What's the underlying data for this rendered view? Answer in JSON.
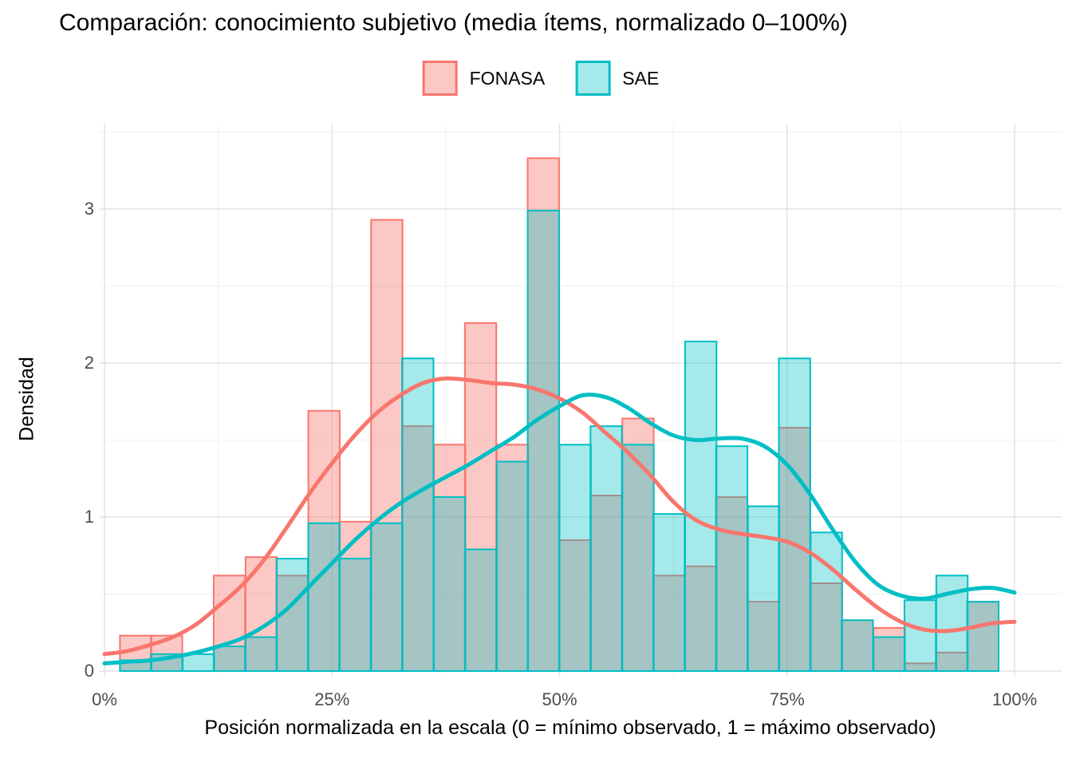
{
  "title": "Comparación: conocimiento subjetivo (media ítems, normalizado 0–100%)",
  "legend": {
    "items": [
      {
        "label": "FONASA",
        "stroke": "#F8766D",
        "fill": "#FCC8C3"
      },
      {
        "label": "SAE",
        "stroke": "#00BFC4",
        "fill": "#A6E9EA"
      }
    ]
  },
  "x_axis": {
    "label": "Posición normalizada en la escala (0 = mínimo observado, 1 = máximo observado)",
    "ticks": [
      {
        "text": "0%",
        "value": 0
      },
      {
        "text": "25%",
        "value": 25
      },
      {
        "text": "50%",
        "value": 50
      },
      {
        "text": "75%",
        "value": 75
      },
      {
        "text": "100%",
        "value": 100
      }
    ],
    "minor_gridlines": [
      12.5,
      37.5,
      62.5,
      87.5
    ]
  },
  "y_axis": {
    "label": "Densidad",
    "ticks": [
      {
        "text": "0",
        "value": 0
      },
      {
        "text": "1",
        "value": 1
      },
      {
        "text": "2",
        "value": 2
      },
      {
        "text": "3",
        "value": 3
      }
    ],
    "minor_gridlines": [
      0.5,
      1.5,
      2.5,
      3.5
    ]
  },
  "chart_data": {
    "type": "histogram+density",
    "title": "Comparación: conocimiento subjetivo (media ítems, normalizado 0–100%)",
    "xlabel": "Posición normalizada en la escala (0 = mínimo observado, 1 = máximo observado)",
    "ylabel": "Densidad",
    "xlim_pct": [
      -1,
      105
    ],
    "ylim": [
      0,
      3.55
    ],
    "grid": true,
    "legend_position": "top",
    "series_names": [
      "FONASA",
      "SAE"
    ],
    "colors": {
      "fonasa_stroke": "#F8766D",
      "fonasa_fill": "rgba(248,118,109,0.4)",
      "sae_stroke": "#00BFC4",
      "sae_fill": "rgba(0,191,196,0.35)",
      "grid_major": "#E4E4E4",
      "grid_minor": "#F1F1F1"
    },
    "histogram": {
      "bin_start_pct": 1.7,
      "bin_width_pct": 3.448,
      "bins": [
        {
          "start": 1.7,
          "fonasa": 0.23,
          "sae": 0.07
        },
        {
          "start": 5.1,
          "fonasa": 0.23,
          "sae": 0.11
        },
        {
          "start": 8.6,
          "fonasa": 0.0,
          "sae": 0.11
        },
        {
          "start": 12.0,
          "fonasa": 0.62,
          "sae": 0.16
        },
        {
          "start": 15.5,
          "fonasa": 0.74,
          "sae": 0.22
        },
        {
          "start": 18.9,
          "fonasa": 0.62,
          "sae": 0.73
        },
        {
          "start": 22.4,
          "fonasa": 1.69,
          "sae": 0.96
        },
        {
          "start": 25.8,
          "fonasa": 0.97,
          "sae": 0.73
        },
        {
          "start": 29.3,
          "fonasa": 2.93,
          "sae": 0.96
        },
        {
          "start": 32.7,
          "fonasa": 1.59,
          "sae": 2.03
        },
        {
          "start": 36.2,
          "fonasa": 1.47,
          "sae": 1.13
        },
        {
          "start": 39.6,
          "fonasa": 2.26,
          "sae": 0.79
        },
        {
          "start": 43.1,
          "fonasa": 1.47,
          "sae": 1.36
        },
        {
          "start": 46.5,
          "fonasa": 3.33,
          "sae": 2.99
        },
        {
          "start": 50.0,
          "fonasa": 0.85,
          "sae": 1.47
        },
        {
          "start": 53.4,
          "fonasa": 1.14,
          "sae": 1.59
        },
        {
          "start": 56.9,
          "fonasa": 1.64,
          "sae": 1.47
        },
        {
          "start": 60.3,
          "fonasa": 0.62,
          "sae": 1.02
        },
        {
          "start": 63.8,
          "fonasa": 0.68,
          "sae": 2.14
        },
        {
          "start": 67.2,
          "fonasa": 1.13,
          "sae": 1.46
        },
        {
          "start": 70.7,
          "fonasa": 0.45,
          "sae": 1.07
        },
        {
          "start": 74.1,
          "fonasa": 1.58,
          "sae": 2.03
        },
        {
          "start": 77.6,
          "fonasa": 0.57,
          "sae": 0.9
        },
        {
          "start": 81.0,
          "fonasa": 0.33,
          "sae": 0.33
        },
        {
          "start": 84.5,
          "fonasa": 0.28,
          "sae": 0.22
        },
        {
          "start": 87.9,
          "fonasa": 0.05,
          "sae": 0.46
        },
        {
          "start": 91.4,
          "fonasa": 0.12,
          "sae": 0.62
        },
        {
          "start": 94.8,
          "fonasa": 0.45,
          "sae": 0.45
        }
      ]
    },
    "density": {
      "x_pct": [
        0,
        2.5,
        5,
        7.5,
        10,
        12.5,
        15,
        17.5,
        20,
        22.5,
        25,
        27.5,
        30,
        32.5,
        35,
        37.5,
        40,
        42.5,
        45,
        47.5,
        50,
        52.5,
        55,
        57.5,
        60,
        62.5,
        65,
        67.5,
        70,
        72.5,
        75,
        77.5,
        80,
        82.5,
        85,
        87.5,
        90,
        92.5,
        95,
        97.5,
        100
      ],
      "fonasa": [
        0.11,
        0.13,
        0.17,
        0.22,
        0.3,
        0.42,
        0.55,
        0.72,
        0.93,
        1.15,
        1.35,
        1.53,
        1.68,
        1.79,
        1.87,
        1.9,
        1.89,
        1.87,
        1.86,
        1.83,
        1.77,
        1.68,
        1.55,
        1.42,
        1.27,
        1.1,
        0.98,
        0.92,
        0.89,
        0.87,
        0.84,
        0.77,
        0.66,
        0.53,
        0.41,
        0.32,
        0.27,
        0.26,
        0.28,
        0.31,
        0.32
      ],
      "sae": [
        0.05,
        0.06,
        0.07,
        0.09,
        0.12,
        0.16,
        0.21,
        0.29,
        0.4,
        0.55,
        0.7,
        0.85,
        0.98,
        1.09,
        1.18,
        1.26,
        1.34,
        1.43,
        1.52,
        1.63,
        1.72,
        1.79,
        1.78,
        1.71,
        1.61,
        1.53,
        1.5,
        1.51,
        1.51,
        1.46,
        1.34,
        1.15,
        0.92,
        0.71,
        0.56,
        0.49,
        0.47,
        0.5,
        0.53,
        0.54,
        0.51
      ]
    }
  }
}
